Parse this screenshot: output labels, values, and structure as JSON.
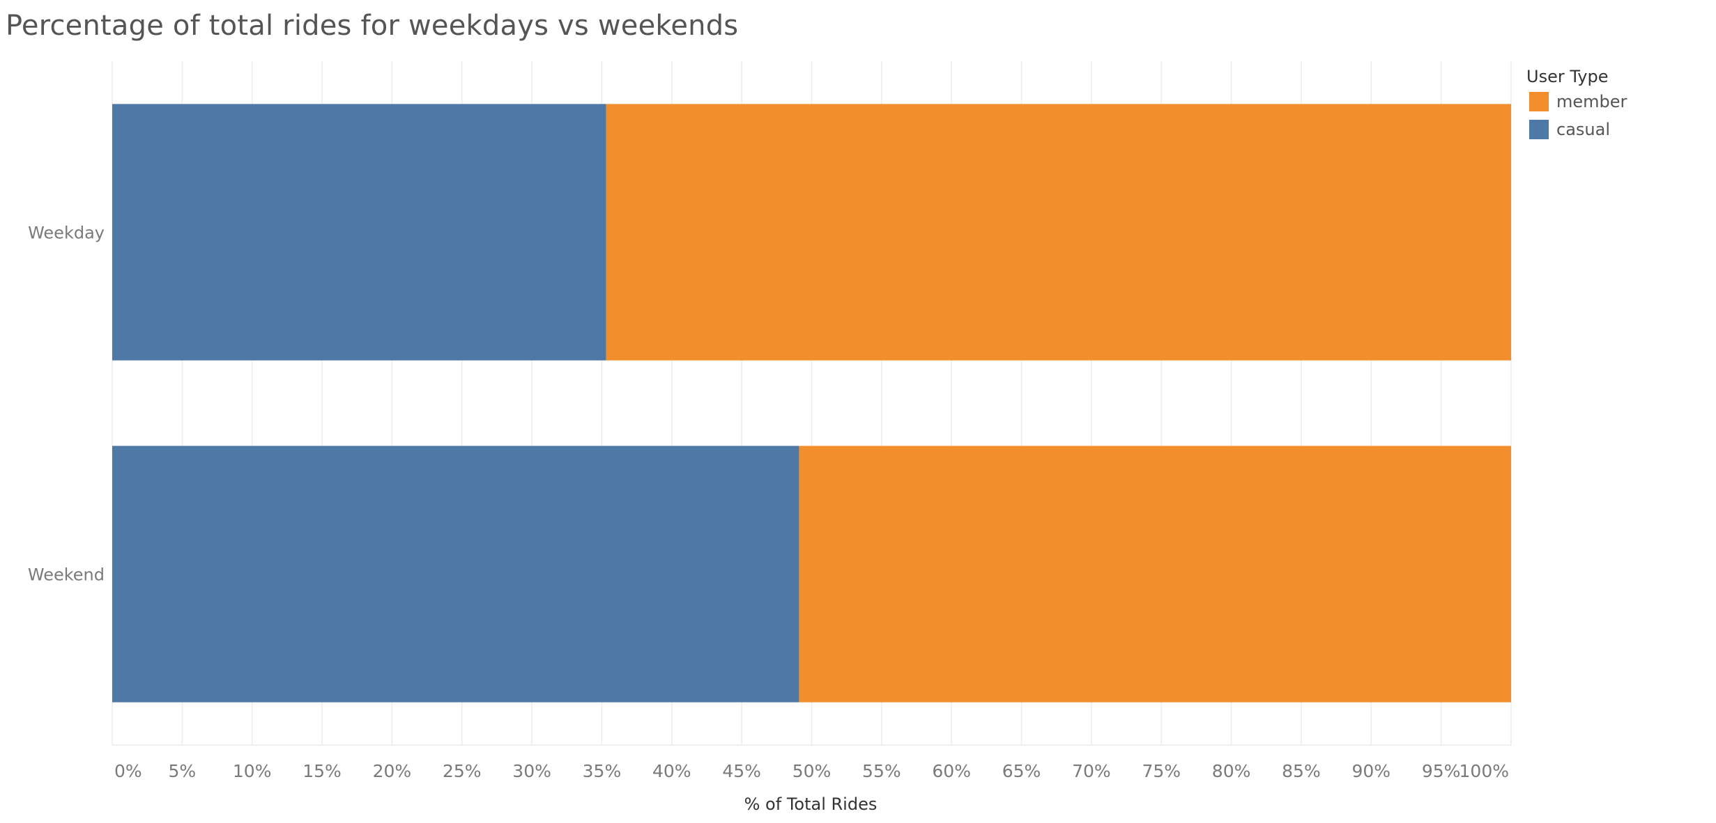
{
  "chart_data": {
    "type": "bar",
    "orientation": "horizontal",
    "stacked": true,
    "title": "Percentage of total rides for weekdays vs weekends",
    "xlabel": "% of Total Rides",
    "ylabel": "",
    "categories": [
      "Weekday",
      "Weekend"
    ],
    "series": [
      {
        "name": "casual",
        "color": "#4e79a7",
        "values": [
          35.3,
          49.1
        ]
      },
      {
        "name": "member",
        "color": "#f28e2b",
        "values": [
          64.7,
          50.9
        ]
      }
    ],
    "xlim": [
      0,
      100
    ],
    "x_ticks": [
      "0%",
      "5%",
      "10%",
      "15%",
      "20%",
      "25%",
      "30%",
      "35%",
      "40%",
      "45%",
      "50%",
      "55%",
      "60%",
      "65%",
      "70%",
      "75%",
      "80%",
      "85%",
      "90%",
      "95%",
      "100%"
    ],
    "grid": "vertical",
    "legend": {
      "title": "User Type",
      "placement": "top-right",
      "entries": [
        {
          "name": "member",
          "color": "#f28e2b"
        },
        {
          "name": "casual",
          "color": "#4e79a7"
        }
      ]
    }
  }
}
